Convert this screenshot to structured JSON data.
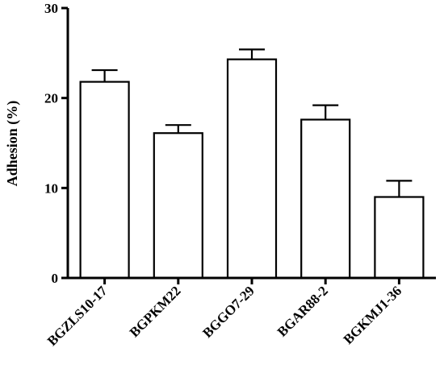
{
  "chart_data": {
    "type": "bar",
    "title": "",
    "xlabel": "",
    "ylabel": "Adhesion (%)",
    "ylim": [
      0,
      30
    ],
    "yticks": [
      0,
      10,
      20,
      30
    ],
    "grid": false,
    "categories": [
      "BGZLS10-17",
      "BGPKM22",
      "BGGO7-29",
      "BGAR88-2",
      "BGKMJ1-36"
    ],
    "values": [
      21.8,
      16.1,
      24.3,
      17.6,
      9.0
    ],
    "errors": [
      1.3,
      0.9,
      1.1,
      1.6,
      1.8
    ]
  }
}
